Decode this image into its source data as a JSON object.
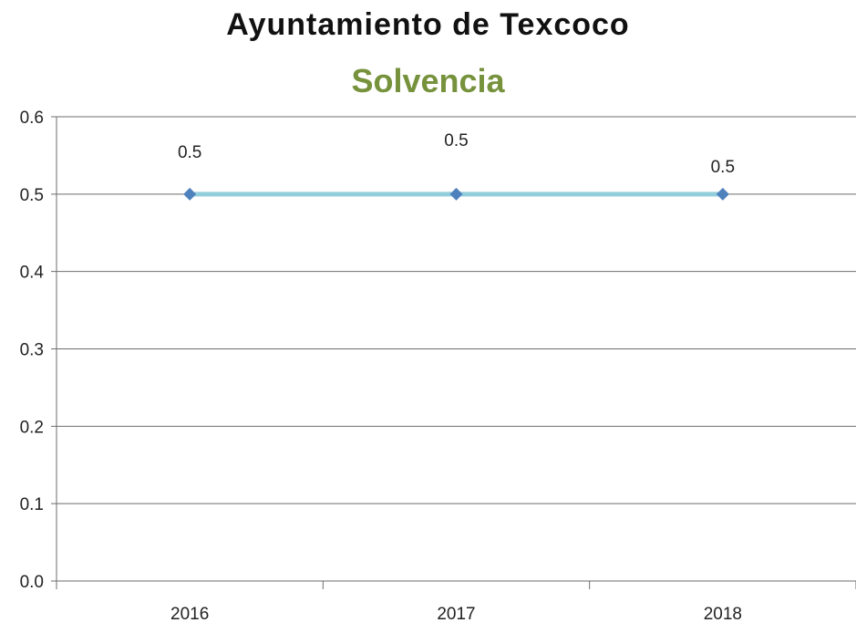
{
  "chart_data": {
    "type": "line",
    "title": "Ayuntamiento de Texcoco",
    "subtitle": "Solvencia",
    "subtitle_color": "#76923c",
    "categories": [
      "2016",
      "2017",
      "2018"
    ],
    "series": [
      {
        "values": [
          0.5,
          0.5,
          0.5
        ],
        "line_color": "#92cddc",
        "marker_color": "#4f81bd",
        "marker": "diamond",
        "data_labels": [
          "0.5",
          "0.5",
          "0.5"
        ]
      }
    ],
    "yticks": [
      "0.0",
      "0.1",
      "0.2",
      "0.3",
      "0.4",
      "0.5",
      "0.6"
    ],
    "ylim": [
      0,
      0.6
    ],
    "grid": true,
    "legend": "none"
  }
}
